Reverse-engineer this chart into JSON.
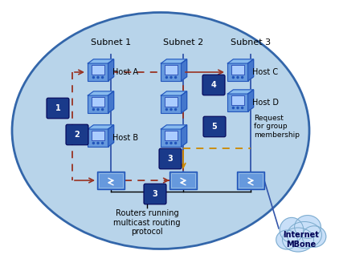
{
  "ellipse_color": "#b8d4ea",
  "ellipse_edge": "#3366aa",
  "subnet_line_color": "#3355aa",
  "dashed_red": "#993322",
  "dashed_orange": "#cc8800",
  "step_badge_color": "#1a3a8a",
  "subnet_labels": [
    "Subnet 1",
    "Subnet 2",
    "Subnet 3"
  ],
  "bottom_text": "Routers running\nmulticast routing\nprotocol",
  "mbone_text": "Internet\nMBone",
  "host_a_label": "Host A",
  "host_b_label": "Host B",
  "host_c_label": "Host C",
  "host_d_label": "Host D",
  "request_text": "Request\nfor group\nmembership"
}
